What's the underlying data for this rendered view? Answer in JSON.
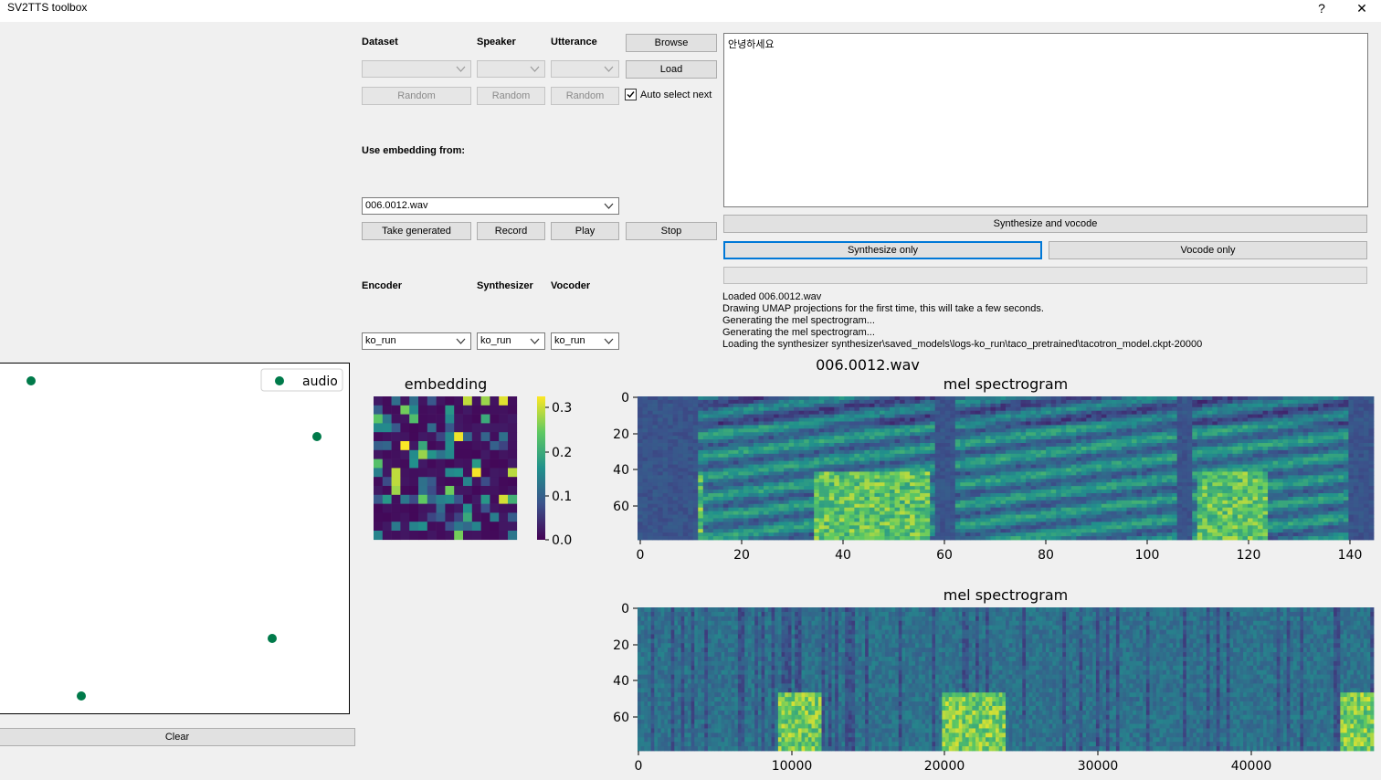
{
  "window": {
    "title": "SV2TTS toolbox",
    "help_glyph": "?",
    "close_glyph": "✕"
  },
  "controls": {
    "dataset_label": "Dataset",
    "speaker_label": "Speaker",
    "utterance_label": "Utterance",
    "browse": "Browse",
    "load": "Load",
    "random": "Random",
    "auto_select_next": "Auto select next",
    "auto_select_checked": true,
    "use_embedding_label": "Use embedding from:",
    "embedding_source": "006.0012.wav",
    "take_generated": "Take generated",
    "record": "Record",
    "play": "Play",
    "stop": "Stop",
    "encoder_label": "Encoder",
    "synthesizer_label": "Synthesizer",
    "vocoder_label": "Vocoder",
    "encoder_value": "ko_run",
    "synthesizer_value": "ko_run",
    "vocoder_value": "ko_run"
  },
  "text_input": "안녕하세요",
  "actions": {
    "synth_and_vocode": "Synthesize and vocode",
    "synth_only": "Synthesize only",
    "vocode_only": "Vocode only"
  },
  "log": [
    "Loaded 006.0012.wav",
    "Drawing UMAP projections for the first time, this will take a few seconds.",
    "Generating the mel spectrogram...",
    "Generating the mel spectrogram...",
    "Loading the synthesizer synthesizer\\saved_models\\logs-ko_run\\taco_pretrained\\tacotron_model.ckpt-20000"
  ],
  "umap": {
    "legend": "audio",
    "clear": "Clear",
    "color": "#007a4a"
  },
  "plots": {
    "file_title": "006.0012.wav",
    "embedding_title": "embedding",
    "mel_title_1": "mel spectrogram",
    "mel_title_2": "mel spectrogram",
    "colorbar_ticks": [
      "0.3",
      "0.2",
      "0.1",
      "0.0"
    ],
    "mel1_yticks": [
      "0",
      "20",
      "40",
      "60"
    ],
    "mel1_xticks": [
      "0",
      "20",
      "40",
      "60",
      "80",
      "100",
      "120",
      "140"
    ],
    "mel2_yticks": [
      "0",
      "20",
      "40",
      "60"
    ],
    "mel2_xticks": [
      "0",
      "10000",
      "20000",
      "30000",
      "40000"
    ]
  },
  "chart_data": [
    {
      "type": "scatter",
      "title": "",
      "series": [
        {
          "name": "audio",
          "x": [
            1,
            8,
            6,
            2
          ],
          "y": [
            9,
            7,
            2,
            0
          ]
        }
      ]
    },
    {
      "type": "heatmap",
      "title": "embedding",
      "colorbar_range": [
        0,
        0.32
      ],
      "colorbar_ticks": [
        0.0,
        0.1,
        0.2,
        0.3
      ]
    },
    {
      "type": "heatmap",
      "title": "mel spectrogram",
      "xlim": [
        0,
        145
      ],
      "ylim": [
        80,
        0
      ],
      "xticks": [
        0,
        20,
        40,
        60,
        80,
        100,
        120,
        140
      ],
      "yticks": [
        0,
        20,
        40,
        60
      ]
    },
    {
      "type": "heatmap",
      "title": "mel spectrogram",
      "xlim": [
        0,
        48000
      ],
      "ylim": [
        80,
        0
      ],
      "xticks": [
        0,
        10000,
        20000,
        30000,
        40000
      ],
      "yticks": [
        0,
        20,
        40,
        60
      ]
    }
  ]
}
